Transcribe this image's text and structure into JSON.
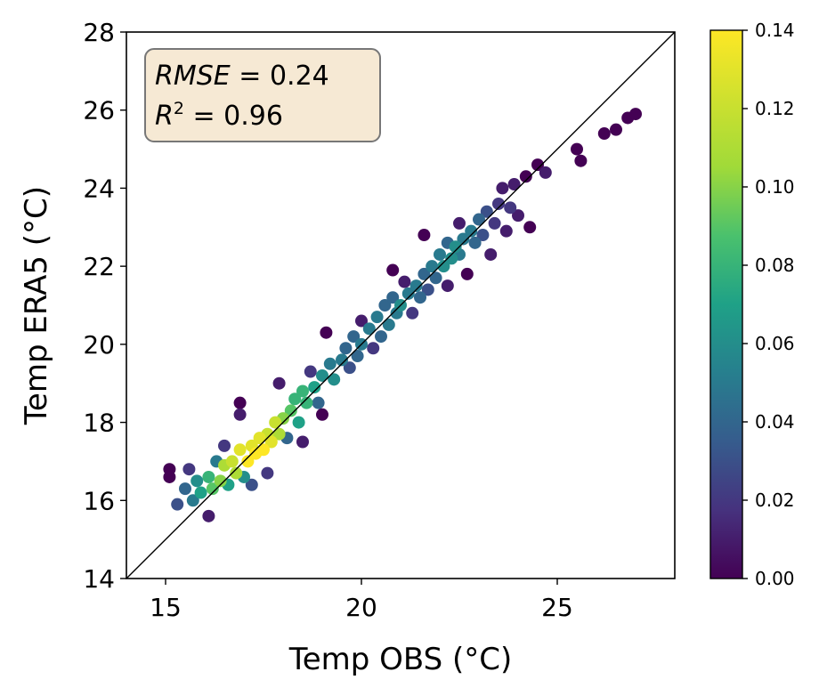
{
  "chart_data": {
    "type": "scatter",
    "title": "",
    "xlabel": "Temp OBS (°C)",
    "ylabel": "Temp ERA5 (°C)",
    "xlim": [
      14,
      28
    ],
    "ylim": [
      14,
      28
    ],
    "xticks": [
      "15",
      "20",
      "25"
    ],
    "yticks": [
      "14",
      "16",
      "18",
      "20",
      "22",
      "24",
      "26",
      "28"
    ],
    "grid": false,
    "reference_line": "y = x",
    "colorbar": {
      "colormap": "viridis",
      "range": [
        0.0,
        0.14
      ],
      "ticks": [
        "0.00",
        "0.02",
        "0.04",
        "0.06",
        "0.08",
        "0.10",
        "0.12",
        "0.14"
      ]
    },
    "stats": {
      "rmse_label": "RMSE",
      "rmse_value": "0.24",
      "r2_label": "R",
      "r2_sup": "2",
      "r2_value": "0.96"
    },
    "points": [
      [
        15.1,
        16.8,
        0.0
      ],
      [
        15.1,
        16.6,
        0.0
      ],
      [
        15.3,
        15.9,
        0.03
      ],
      [
        15.5,
        16.3,
        0.04
      ],
      [
        15.6,
        16.8,
        0.02
      ],
      [
        15.7,
        16.0,
        0.05
      ],
      [
        15.8,
        16.5,
        0.06
      ],
      [
        15.9,
        16.2,
        0.07
      ],
      [
        16.1,
        15.6,
        0.01
      ],
      [
        16.1,
        16.6,
        0.08
      ],
      [
        16.2,
        16.3,
        0.09
      ],
      [
        16.3,
        17.0,
        0.05
      ],
      [
        16.4,
        16.5,
        0.1
      ],
      [
        16.5,
        16.9,
        0.11
      ],
      [
        16.5,
        17.4,
        0.02
      ],
      [
        16.6,
        16.4,
        0.07
      ],
      [
        16.7,
        17.0,
        0.12
      ],
      [
        16.8,
        16.7,
        0.11
      ],
      [
        16.9,
        17.3,
        0.13
      ],
      [
        16.9,
        18.5,
        0.0
      ],
      [
        16.9,
        18.2,
        0.01
      ],
      [
        17.0,
        16.6,
        0.06
      ],
      [
        17.1,
        17.0,
        0.14
      ],
      [
        17.2,
        17.4,
        0.13
      ],
      [
        17.2,
        16.4,
        0.03
      ],
      [
        17.3,
        17.2,
        0.14
      ],
      [
        17.4,
        17.6,
        0.13
      ],
      [
        17.5,
        17.3,
        0.14
      ],
      [
        17.6,
        16.7,
        0.02
      ],
      [
        17.6,
        17.7,
        0.12
      ],
      [
        17.7,
        17.5,
        0.13
      ],
      [
        17.8,
        18.0,
        0.12
      ],
      [
        17.9,
        17.7,
        0.11
      ],
      [
        17.9,
        19.0,
        0.01
      ],
      [
        18.0,
        18.1,
        0.1
      ],
      [
        18.1,
        17.6,
        0.04
      ],
      [
        18.2,
        18.3,
        0.09
      ],
      [
        18.3,
        18.6,
        0.08
      ],
      [
        18.4,
        18.0,
        0.07
      ],
      [
        18.5,
        17.5,
        0.01
      ],
      [
        18.5,
        18.8,
        0.08
      ],
      [
        18.6,
        18.5,
        0.08
      ],
      [
        18.7,
        19.3,
        0.02
      ],
      [
        18.8,
        18.9,
        0.07
      ],
      [
        18.9,
        18.5,
        0.04
      ],
      [
        19.0,
        18.2,
        0.0
      ],
      [
        19.0,
        19.2,
        0.06
      ],
      [
        19.1,
        20.3,
        0.0
      ],
      [
        19.2,
        19.5,
        0.05
      ],
      [
        19.3,
        19.1,
        0.06
      ],
      [
        19.5,
        19.6,
        0.05
      ],
      [
        19.6,
        19.9,
        0.04
      ],
      [
        19.7,
        19.4,
        0.03
      ],
      [
        19.8,
        20.2,
        0.04
      ],
      [
        19.9,
        19.7,
        0.04
      ],
      [
        20.0,
        20.0,
        0.05
      ],
      [
        20.0,
        20.6,
        0.01
      ],
      [
        20.2,
        20.4,
        0.05
      ],
      [
        20.3,
        19.9,
        0.02
      ],
      [
        20.4,
        20.7,
        0.05
      ],
      [
        20.5,
        20.2,
        0.04
      ],
      [
        20.6,
        21.0,
        0.04
      ],
      [
        20.7,
        20.5,
        0.05
      ],
      [
        20.8,
        21.2,
        0.04
      ],
      [
        20.8,
        21.9,
        0.0
      ],
      [
        20.9,
        20.8,
        0.05
      ],
      [
        21.0,
        21.0,
        0.06
      ],
      [
        21.1,
        21.6,
        0.01
      ],
      [
        21.2,
        21.3,
        0.05
      ],
      [
        21.3,
        20.8,
        0.02
      ],
      [
        21.4,
        21.5,
        0.05
      ],
      [
        21.5,
        21.2,
        0.04
      ],
      [
        21.6,
        22.8,
        0.0
      ],
      [
        21.6,
        21.8,
        0.04
      ],
      [
        21.7,
        21.4,
        0.03
      ],
      [
        21.8,
        22.0,
        0.05
      ],
      [
        21.9,
        21.7,
        0.04
      ],
      [
        22.0,
        22.3,
        0.05
      ],
      [
        22.1,
        22.0,
        0.06
      ],
      [
        22.2,
        22.6,
        0.04
      ],
      [
        22.2,
        21.5,
        0.01
      ],
      [
        22.3,
        22.2,
        0.06
      ],
      [
        22.4,
        22.5,
        0.06
      ],
      [
        22.5,
        23.1,
        0.01
      ],
      [
        22.5,
        22.3,
        0.05
      ],
      [
        22.6,
        22.7,
        0.05
      ],
      [
        22.7,
        21.8,
        0.0
      ],
      [
        22.8,
        22.9,
        0.05
      ],
      [
        22.9,
        22.6,
        0.04
      ],
      [
        23.0,
        23.2,
        0.04
      ],
      [
        23.1,
        22.8,
        0.03
      ],
      [
        23.2,
        23.4,
        0.03
      ],
      [
        23.3,
        22.3,
        0.01
      ],
      [
        23.4,
        23.1,
        0.02
      ],
      [
        23.5,
        23.6,
        0.02
      ],
      [
        23.6,
        24.0,
        0.01
      ],
      [
        23.7,
        22.9,
        0.01
      ],
      [
        23.8,
        23.5,
        0.02
      ],
      [
        23.9,
        24.1,
        0.01
      ],
      [
        24.0,
        23.3,
        0.01
      ],
      [
        24.2,
        24.3,
        0.0
      ],
      [
        24.3,
        23.0,
        0.0
      ],
      [
        24.5,
        24.6,
        0.0
      ],
      [
        24.7,
        24.4,
        0.01
      ],
      [
        25.5,
        25.0,
        0.0
      ],
      [
        25.6,
        24.7,
        0.0
      ],
      [
        26.2,
        25.4,
        0.0
      ],
      [
        26.5,
        25.5,
        0.0
      ],
      [
        26.8,
        25.8,
        0.0
      ],
      [
        27.0,
        25.9,
        0.0
      ]
    ]
  }
}
